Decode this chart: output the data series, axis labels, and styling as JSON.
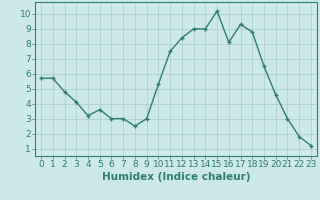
{
  "x": [
    0,
    1,
    2,
    3,
    4,
    5,
    6,
    7,
    8,
    9,
    10,
    11,
    12,
    13,
    14,
    15,
    16,
    17,
    18,
    19,
    20,
    21,
    22,
    23
  ],
  "y": [
    5.7,
    5.7,
    4.8,
    4.1,
    3.2,
    3.6,
    3.0,
    3.0,
    2.5,
    3.0,
    5.3,
    7.5,
    8.4,
    9.0,
    9.0,
    10.2,
    8.1,
    9.3,
    8.8,
    6.5,
    4.6,
    3.0,
    1.8,
    1.2
  ],
  "line_color": "#2e7d6e",
  "marker": "+",
  "bg_color": "#cce8e8",
  "grid_color": "#aacccc",
  "xlabel": "Humidex (Indice chaleur)",
  "xlim": [
    -0.5,
    23.5
  ],
  "ylim": [
    0.5,
    10.8
  ],
  "yticks": [
    1,
    2,
    3,
    4,
    5,
    6,
    7,
    8,
    9,
    10
  ],
  "xticks": [
    0,
    1,
    2,
    3,
    4,
    5,
    6,
    7,
    8,
    9,
    10,
    11,
    12,
    13,
    14,
    15,
    16,
    17,
    18,
    19,
    20,
    21,
    22,
    23
  ],
  "xtick_labels": [
    "0",
    "1",
    "2",
    "3",
    "4",
    "5",
    "6",
    "7",
    "8",
    "9",
    "10",
    "11",
    "12",
    "13",
    "14",
    "15",
    "16",
    "17",
    "18",
    "19",
    "20",
    "21",
    "22",
    "23"
  ],
  "axis_label_color": "#2e7d6e",
  "tick_color": "#2e7d6e",
  "font_size": 6.5,
  "xlabel_fontsize": 7.5
}
